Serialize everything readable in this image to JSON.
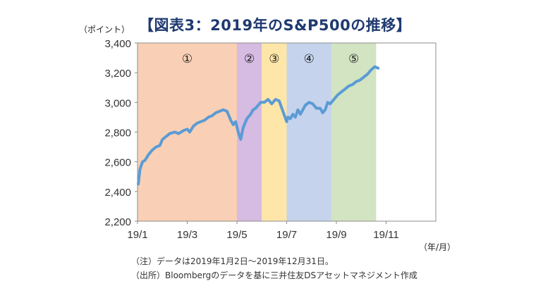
{
  "chart_data": {
    "type": "line",
    "title": "【図表3：2019年のS&P500の推移】",
    "ylabel": "（ポイント）",
    "xlabel": "（年/月）",
    "ylim": [
      2200,
      3400
    ],
    "y_ticks": [
      2200,
      2400,
      2600,
      2800,
      3000,
      3200,
      3400
    ],
    "y_tick_labels": [
      "2,200",
      "2,400",
      "2,600",
      "2,800",
      "3,000",
      "3,200",
      "3,400"
    ],
    "x_tick_labels": [
      "19/1",
      "19/3",
      "19/5",
      "19/7",
      "19/9",
      "19/11"
    ],
    "x_ticks_month": [
      1,
      3,
      5,
      7,
      9,
      11
    ],
    "x_range_month": [
      1,
      13
    ],
    "grid": false,
    "periods": [
      {
        "label": "①",
        "start": 1.0,
        "end": 5.0,
        "color": "#f9d0b5"
      },
      {
        "label": "②",
        "start": 5.0,
        "end": 6.0,
        "color": "#d6bbe2"
      },
      {
        "label": "③",
        "start": 6.0,
        "end": 7.0,
        "color": "#fde6a8"
      },
      {
        "label": "④",
        "start": 7.0,
        "end": 8.8,
        "color": "#c6d3ed"
      },
      {
        "label": "⑤",
        "start": 8.8,
        "end": 10.6,
        "color": "#d2e4c2"
      }
    ],
    "series": [
      {
        "color": "#5b9bd5",
        "x": [
          1.03,
          1.1,
          1.2,
          1.3,
          1.45,
          1.6,
          1.75,
          1.9,
          2.0,
          2.15,
          2.3,
          2.5,
          2.65,
          2.85,
          3.0,
          3.1,
          3.25,
          3.4,
          3.55,
          3.7,
          3.85,
          4.0,
          4.15,
          4.3,
          4.45,
          4.6,
          4.75,
          4.85,
          4.95,
          5.05,
          5.15,
          5.25,
          5.4,
          5.55,
          5.65,
          5.75,
          5.85,
          5.95,
          6.1,
          6.25,
          6.4,
          6.55,
          6.7,
          6.85,
          7.0,
          7.05,
          7.15,
          7.25,
          7.35,
          7.45,
          7.55,
          7.65,
          7.75,
          7.9,
          8.05,
          8.2,
          8.35,
          8.45,
          8.55,
          8.65,
          8.75,
          8.9,
          9.05,
          9.2,
          9.35,
          9.5,
          9.65,
          9.8,
          9.95,
          10.1,
          10.25,
          10.4,
          10.55,
          10.68
        ],
        "values": [
          2450,
          2550,
          2600,
          2610,
          2650,
          2680,
          2700,
          2710,
          2750,
          2770,
          2790,
          2800,
          2790,
          2810,
          2820,
          2800,
          2840,
          2860,
          2870,
          2880,
          2900,
          2910,
          2930,
          2940,
          2950,
          2940,
          2880,
          2850,
          2870,
          2800,
          2750,
          2830,
          2890,
          2920,
          2950,
          2960,
          2980,
          3000,
          3000,
          3020,
          2990,
          3020,
          3010,
          2940,
          2870,
          2900,
          2890,
          2920,
          2900,
          2950,
          2920,
          2950,
          2980,
          3000,
          2990,
          2960,
          2960,
          2930,
          2950,
          3000,
          2990,
          3020,
          3050,
          3070,
          3090,
          3110,
          3120,
          3140,
          3150,
          3170,
          3190,
          3220,
          3240,
          3230
        ]
      }
    ]
  },
  "notes": [
    "（注）データは2019年1月2日～2019年12月31日。",
    "（出所）Bloombergのデータを基に三井住友DSアセットマネジメント作成"
  ]
}
